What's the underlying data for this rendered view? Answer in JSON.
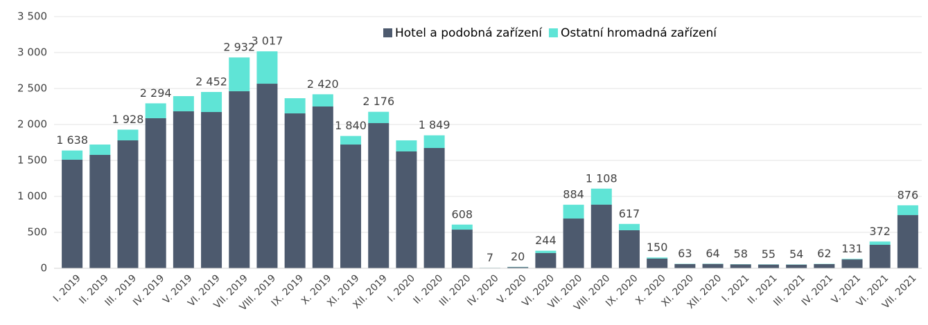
{
  "chart_data": {
    "type": "stacked_bar",
    "categories": [
      "I. 2019",
      "II. 2019",
      "III. 2019",
      "IV. 2019",
      "V. 2019",
      "VI. 2019",
      "VII. 2019",
      "VIII. 2019",
      "IX. 2019",
      "X. 2019",
      "XI. 2019",
      "XII. 2019",
      "I. 2020",
      "II. 2020",
      "III. 2020",
      "IV. 2020",
      "V. 2020",
      "VI. 2020",
      "VII. 2020",
      "VIII. 2020",
      "IX. 2020",
      "X. 2020",
      "XI. 2020",
      "XII. 2020",
      "I. 2021",
      "II. 2021",
      "III. 2021",
      "IV. 2021",
      "V. 2021",
      "VI. 2021",
      "VII. 2021"
    ],
    "series": [
      {
        "name": "Hotel a podobná zařízení",
        "color": "#4d5a6e",
        "values": [
          1510,
          1577,
          1779,
          2087,
          2183,
          2173,
          2462,
          2567,
          2154,
          2250,
          1721,
          2019,
          1625,
          1673,
          538,
          6,
          17,
          212,
          692,
          885,
          529,
          136,
          60,
          61,
          55,
          52,
          51,
          59,
          124,
          327,
          740
        ]
      },
      {
        "name": "Ostatní hromadná zařízení",
        "color": "#5fe4d6",
        "values": [
          128,
          144,
          149,
          207,
          211,
          279,
          470,
          450,
          211,
          170,
          119,
          157,
          154,
          176,
          70,
          1,
          3,
          32,
          192,
          223,
          88,
          14,
          3,
          3,
          3,
          3,
          3,
          3,
          7,
          45,
          136
        ]
      }
    ],
    "totals": [
      1638,
      null,
      1928,
      2294,
      null,
      2452,
      2932,
      3017,
      null,
      2420,
      1840,
      2176,
      null,
      1849,
      608,
      7,
      20,
      244,
      884,
      1108,
      617,
      150,
      63,
      64,
      58,
      55,
      54,
      62,
      131,
      372,
      876
    ],
    "total_labels": [
      "1 638",
      null,
      "1 928",
      "2 294",
      null,
      "2 452",
      "2 932",
      "3 017",
      null,
      "2 420",
      "1 840",
      "2 176",
      null,
      "1 849",
      "608",
      "7",
      "20",
      "244",
      "884",
      "1 108",
      "617",
      "150",
      "63",
      "64",
      "58",
      "55",
      "54",
      "62",
      "131",
      "372",
      "876"
    ],
    "ylim": [
      0,
      3500
    ],
    "yticks": [
      0,
      500,
      {
        "value": 1000,
        "label": "1 000"
      },
      {
        "value": 1500,
        "label": "1 500"
      },
      {
        "value": 2000,
        "label": "2 000"
      },
      {
        "value": 2500,
        "label": "2 500"
      },
      {
        "value": 3000,
        "label": "3 000"
      },
      {
        "value": 3500,
        "label": "3 500"
      }
    ],
    "grid": true,
    "legend": "top"
  }
}
